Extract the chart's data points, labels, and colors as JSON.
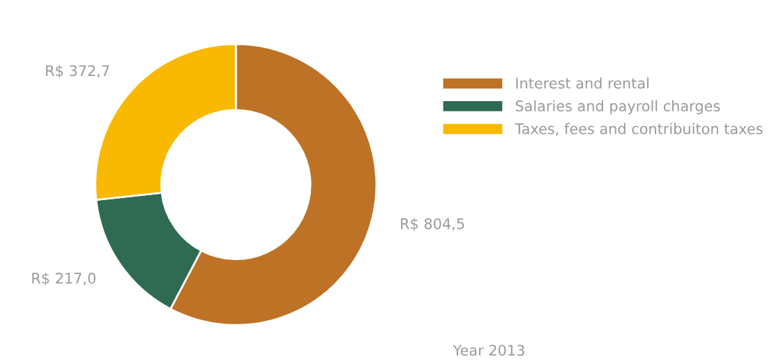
{
  "chart_data": {
    "type": "donut",
    "categories": [
      "Interest and rental",
      "Salaries and payroll charges",
      "Taxes, fees and contribuiton taxes"
    ],
    "values": [
      804.5,
      217.0,
      372.7
    ],
    "colors": [
      "#bd7226",
      "#2e6b52",
      "#f9b900"
    ],
    "value_labels": [
      "R$ 804,5",
      "R$ 217,0",
      "R$ 372,7"
    ],
    "legend": "right",
    "annotations": [
      "Year 2013"
    ]
  }
}
